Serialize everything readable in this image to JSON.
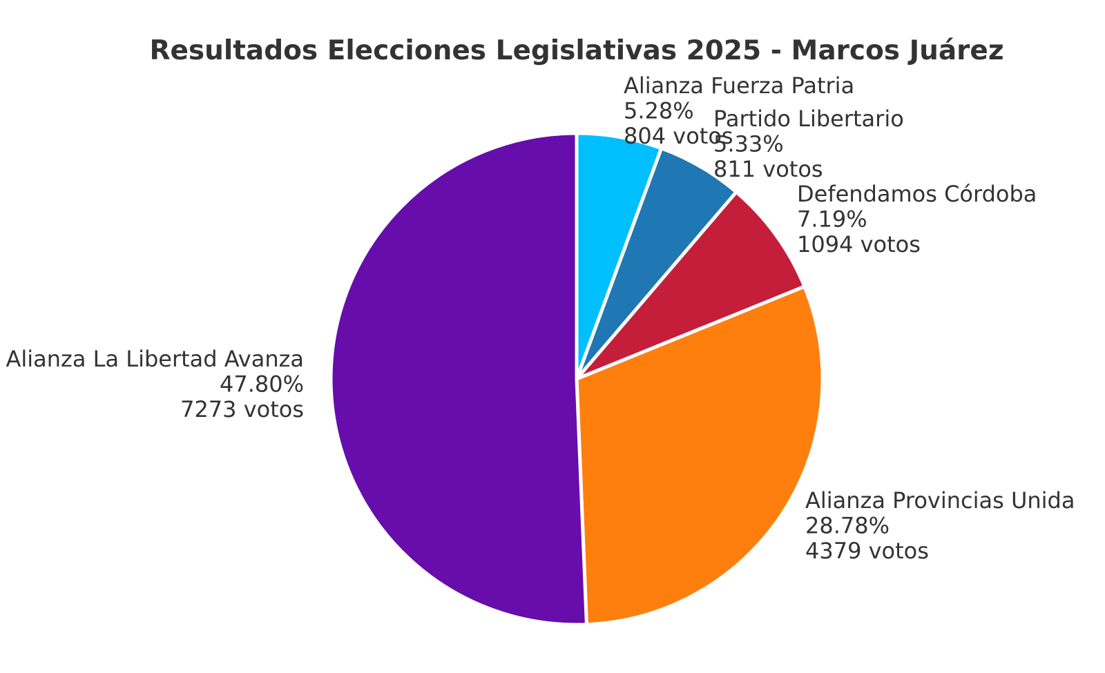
{
  "chart_data": {
    "type": "pie",
    "title": "Resultados Elecciones Legislativas 2025 - Marcos Juárez",
    "start_angle_deg": 90,
    "direction": "clockwise",
    "legend": "none",
    "vote_suffix": "votos",
    "slices": [
      {
        "name": "Alianza Fuerza Patria",
        "percent": "5.28%",
        "value": 804,
        "color": "#00BFFF"
      },
      {
        "name": "Partido Libertario",
        "percent": "5.33%",
        "value": 811,
        "color": "#1F77B4"
      },
      {
        "name": "Defendamos Córdoba",
        "percent": "7.19%",
        "value": 1094,
        "color": "#C41E3A"
      },
      {
        "name": "Alianza Provincias Unida",
        "percent": "28.78%",
        "value": 4379,
        "color": "#FF7F0E"
      },
      {
        "name": "Alianza La Libertad Avanza",
        "percent": "47.80%",
        "value": 7273,
        "color": "#660DAB"
      }
    ]
  }
}
